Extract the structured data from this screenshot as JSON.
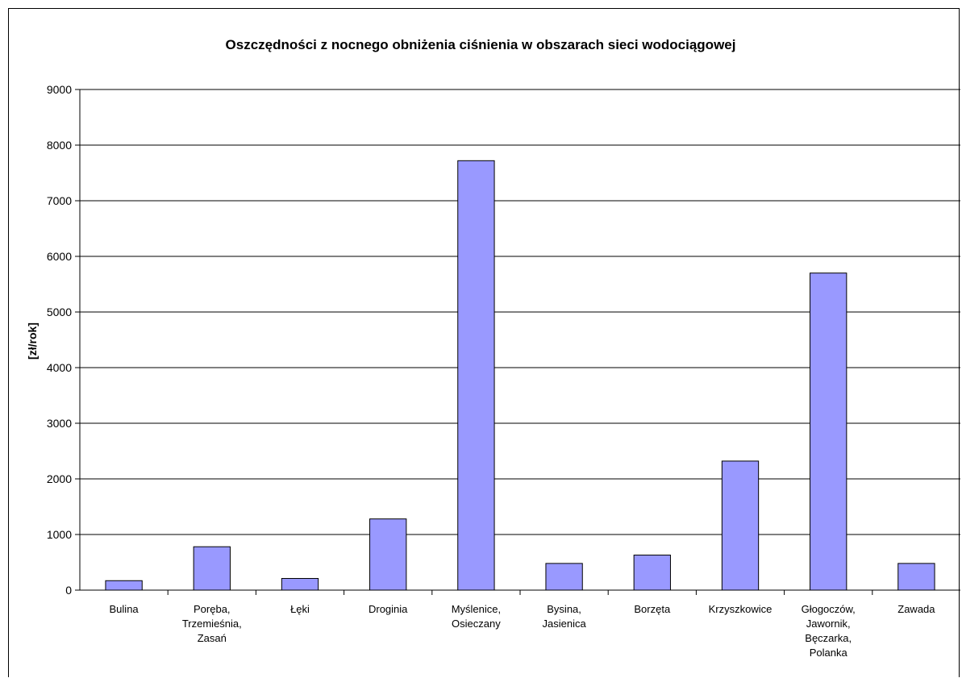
{
  "chart_data": {
    "type": "bar",
    "title": "Oszczędności z nocnego obniżenia ciśnienia w obszarach sieci wodociągowej",
    "ylabel": "[zł/rok]",
    "xlabel": "",
    "ylim": [
      0,
      9000
    ],
    "yticks": [
      0,
      1000,
      2000,
      3000,
      4000,
      5000,
      6000,
      7000,
      8000,
      9000
    ],
    "grid": true,
    "legend": false,
    "categories": [
      [
        "Bulina"
      ],
      [
        "Poręba,",
        "Trzemieśnia,",
        "Zasań"
      ],
      [
        "Łęki"
      ],
      [
        "Droginia"
      ],
      [
        "Myślenice,",
        "Osieczany"
      ],
      [
        "Bysina,",
        "Jasienica"
      ],
      [
        "Borzęta"
      ],
      [
        "Krzyszkowice"
      ],
      [
        "Głogoczów,",
        "Jawornik,",
        "Bęczarka,",
        "Polanka"
      ],
      [
        "Zawada"
      ]
    ],
    "values": [
      170,
      780,
      210,
      1280,
      7720,
      480,
      630,
      2320,
      5700,
      480
    ],
    "colors": {
      "bar_fill": "#9999ff",
      "bar_stroke": "#000000",
      "grid": "#000000"
    }
  }
}
